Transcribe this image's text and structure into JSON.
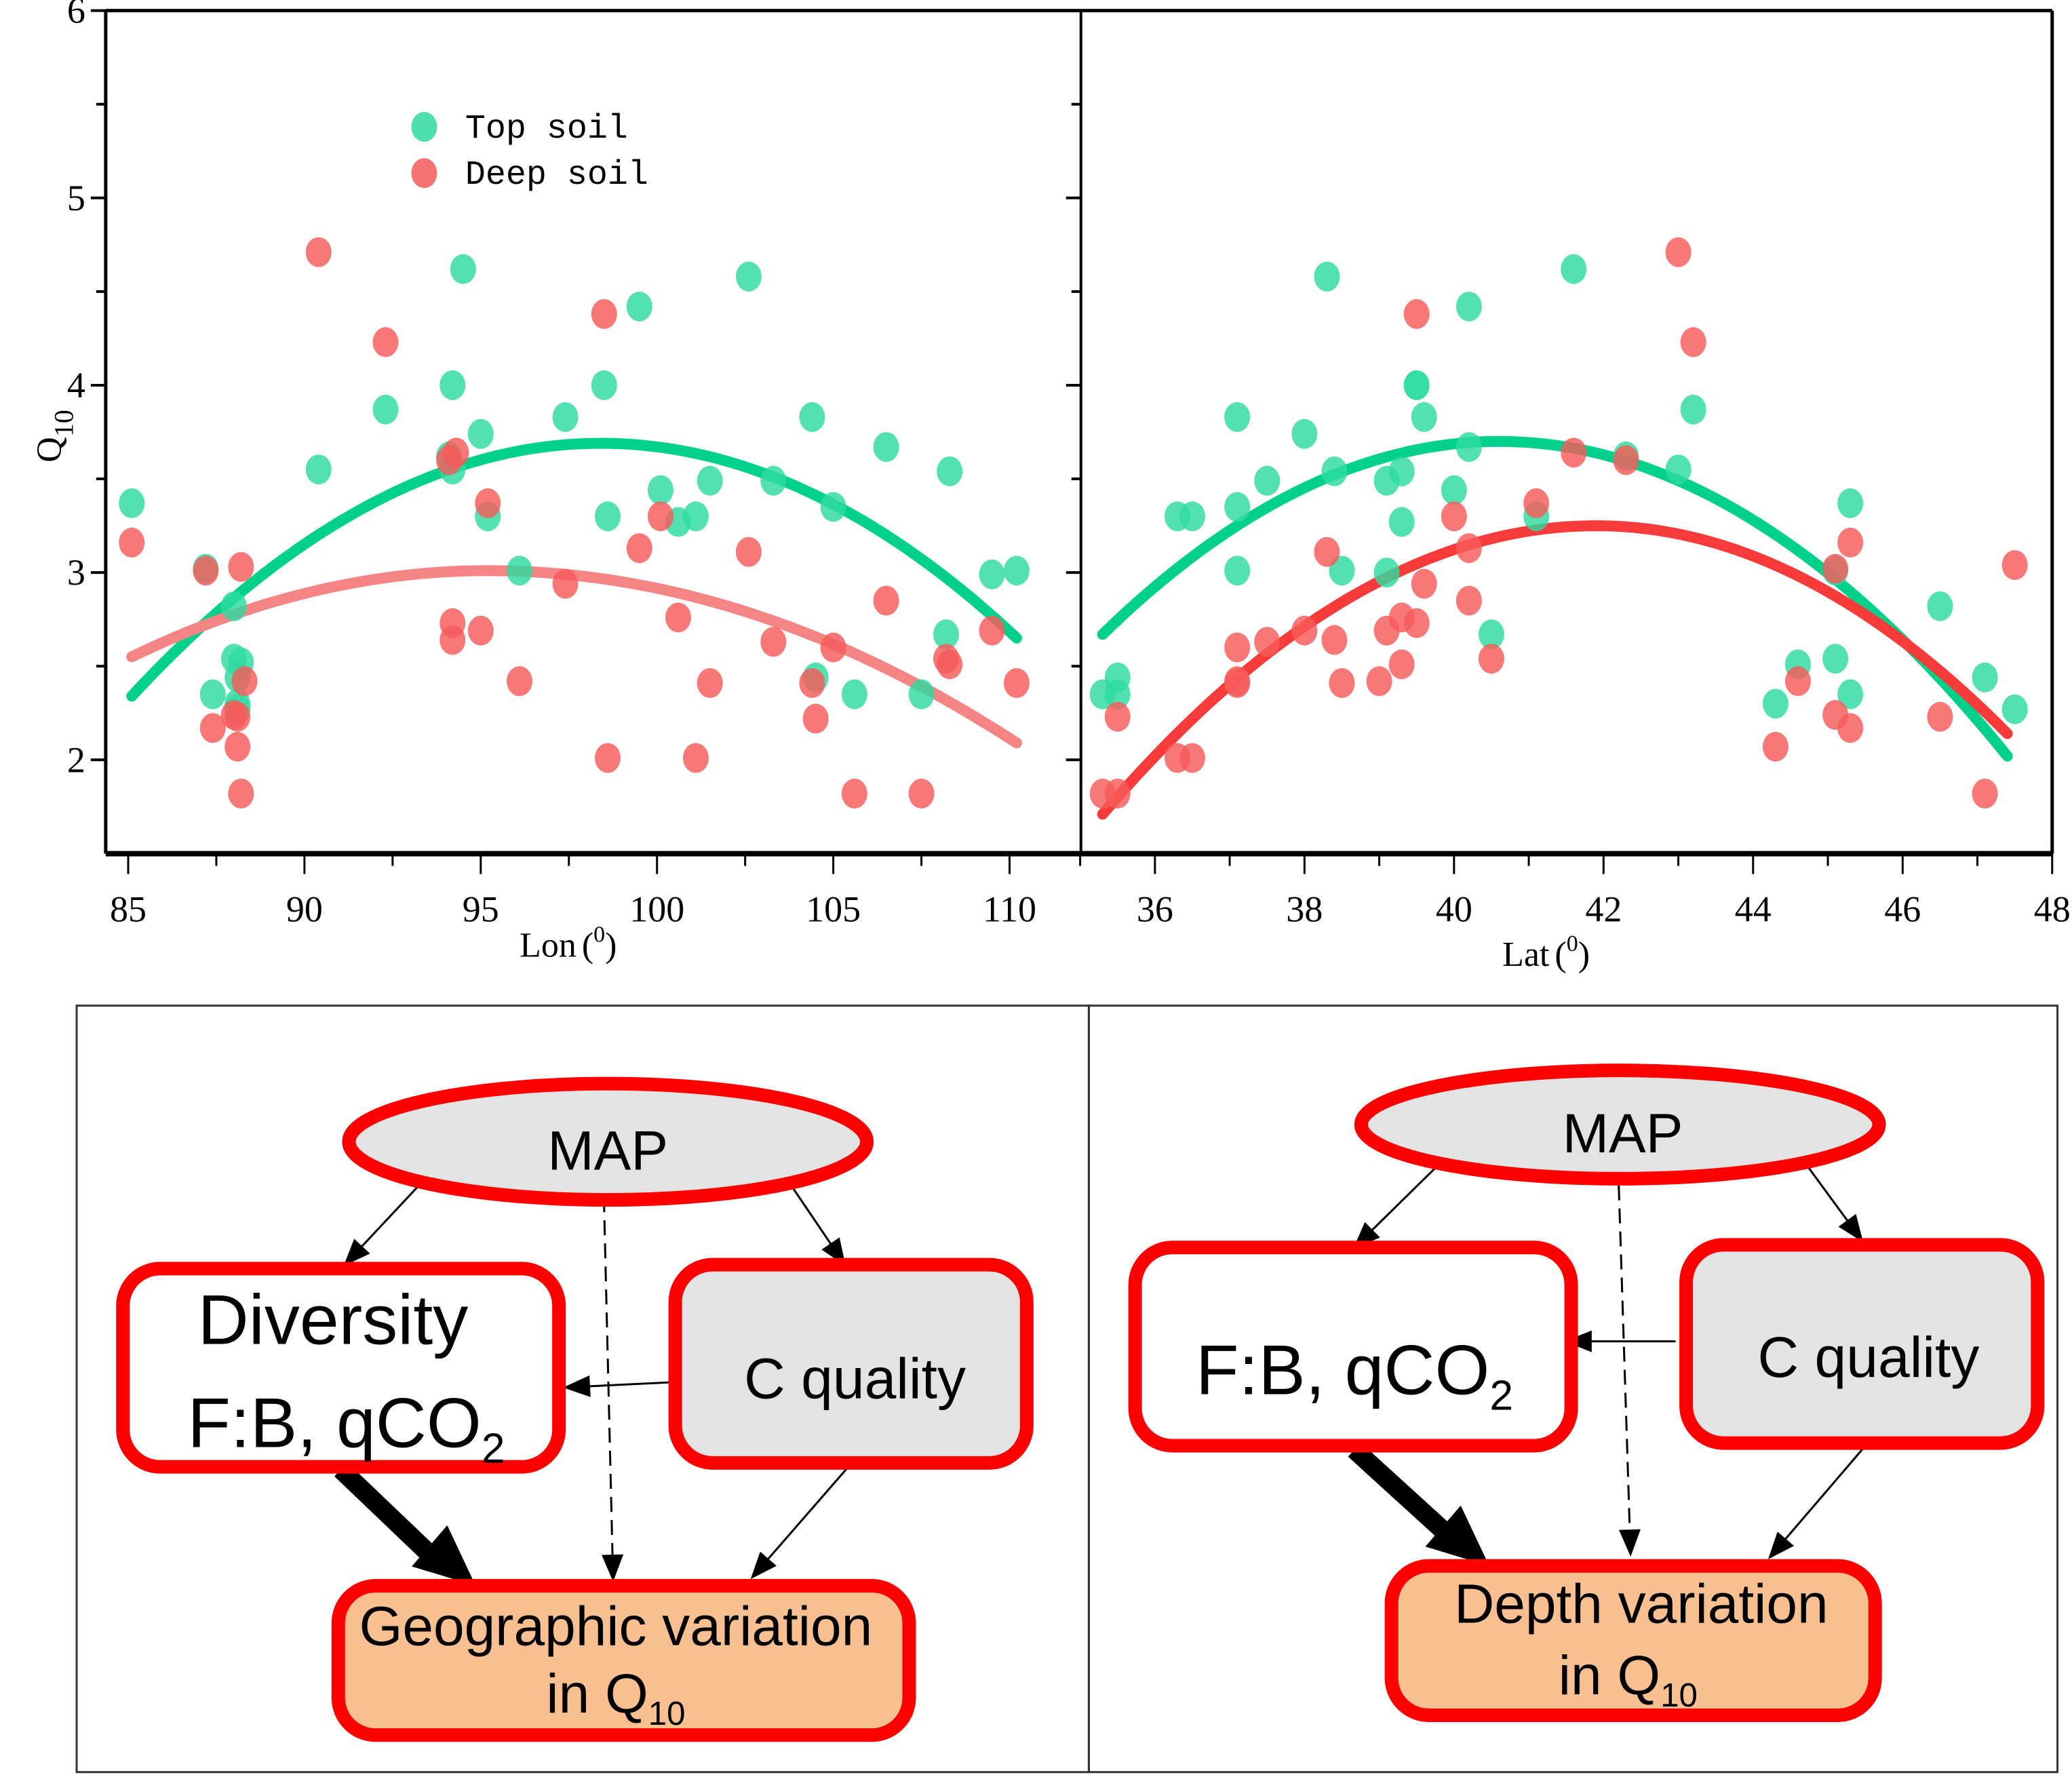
{
  "chart_data": [
    {
      "type": "scatter",
      "panel": "left",
      "xlabel": "Lon",
      "xlabel_unit": "0",
      "ylabel": "Q",
      "ylabel_sub": "10",
      "xlim": [
        84.5,
        112
      ],
      "ylim": [
        1.5,
        6
      ],
      "xticks": [
        85,
        90,
        95,
        100,
        105,
        110
      ],
      "yticks": [
        2,
        3,
        4,
        5,
        6
      ],
      "legend": {
        "placement": "top-left",
        "entries": [
          {
            "label": "Top soil",
            "color": "#2edba0"
          },
          {
            "label": "Deep soil",
            "color": "#f65a5a"
          }
        ]
      },
      "series": [
        {
          "name": "Top soil",
          "color": "#2edba0",
          "points": [
            [
              85.1,
              3.37
            ],
            [
              87.2,
              3.02
            ],
            [
              87.4,
              2.35
            ],
            [
              88.0,
              2.82
            ],
            [
              88.0,
              2.54
            ],
            [
              88.2,
              2.52
            ],
            [
              88.1,
              2.44
            ],
            [
              88.1,
              2.3
            ],
            [
              88.1,
              2.27
            ],
            [
              90.4,
              3.55
            ],
            [
              92.3,
              3.87
            ],
            [
              94.1,
              3.62
            ],
            [
              94.2,
              4.0
            ],
            [
              94.2,
              3.55
            ],
            [
              94.5,
              4.62
            ],
            [
              95.0,
              3.74
            ],
            [
              95.2,
              3.3
            ],
            [
              96.1,
              3.01
            ],
            [
              97.4,
              3.83
            ],
            [
              98.5,
              4.0
            ],
            [
              98.6,
              3.3
            ],
            [
              99.5,
              4.42
            ],
            [
              100.1,
              3.44
            ],
            [
              100.6,
              3.27
            ],
            [
              101.1,
              3.3
            ],
            [
              101.5,
              3.49
            ],
            [
              102.6,
              4.58
            ],
            [
              103.3,
              3.49
            ],
            [
              104.4,
              3.83
            ],
            [
              104.5,
              2.44
            ],
            [
              105.0,
              3.35
            ],
            [
              105.6,
              2.35
            ],
            [
              106.5,
              3.67
            ],
            [
              107.5,
              2.35
            ],
            [
              108.2,
              2.67
            ],
            [
              108.3,
              3.54
            ],
            [
              109.5,
              2.99
            ],
            [
              110.2,
              3.01
            ]
          ],
          "fit": {
            "form": "quadratic",
            "vertex_x": 98.4,
            "vertex_y": 3.69,
            "x_start": 85.1,
            "y_start": 2.34,
            "x_end": 110.2,
            "y_end": 2.65
          }
        },
        {
          "name": "Deep soil",
          "color": "#f65a5a",
          "points": [
            [
              85.1,
              3.16
            ],
            [
              87.2,
              3.01
            ],
            [
              87.4,
              2.17
            ],
            [
              88.0,
              2.24
            ],
            [
              88.1,
              2.07
            ],
            [
              88.2,
              3.03
            ],
            [
              88.3,
              2.42
            ],
            [
              88.2,
              1.82
            ],
            [
              88.1,
              2.23
            ],
            [
              90.4,
              4.71
            ],
            [
              92.3,
              4.23
            ],
            [
              94.1,
              3.6
            ],
            [
              94.3,
              3.64
            ],
            [
              94.2,
              2.73
            ],
            [
              94.2,
              2.64
            ],
            [
              95.0,
              2.69
            ],
            [
              95.2,
              3.37
            ],
            [
              96.1,
              2.42
            ],
            [
              97.4,
              2.94
            ],
            [
              98.5,
              4.38
            ],
            [
              98.6,
              2.01
            ],
            [
              99.5,
              3.13
            ],
            [
              100.1,
              3.3
            ],
            [
              100.6,
              2.76
            ],
            [
              101.1,
              2.01
            ],
            [
              101.5,
              2.41
            ],
            [
              102.6,
              3.11
            ],
            [
              103.3,
              2.63
            ],
            [
              104.4,
              2.41
            ],
            [
              104.5,
              2.22
            ],
            [
              105.0,
              2.6
            ],
            [
              105.6,
              1.82
            ],
            [
              106.5,
              2.85
            ],
            [
              107.5,
              1.82
            ],
            [
              108.2,
              2.54
            ],
            [
              108.3,
              2.51
            ],
            [
              109.5,
              2.69
            ],
            [
              110.2,
              2.41
            ]
          ],
          "fit": {
            "form": "quadratic",
            "vertex_x": 95.2,
            "vertex_y": 3.01,
            "x_start": 85.1,
            "y_start": 2.55,
            "x_end": 110.2,
            "y_end": 2.09
          }
        }
      ]
    },
    {
      "type": "scatter",
      "panel": "right",
      "xlabel": "Lat",
      "xlabel_unit": "0",
      "xlim": [
        35,
        48
      ],
      "ylim": [
        1.5,
        6
      ],
      "xticks": [
        36,
        38,
        40,
        42,
        44,
        46,
        48
      ],
      "series": [
        {
          "name": "Top soil",
          "color": "#2edba0",
          "points": [
            [
              35.3,
              2.35
            ],
            [
              35.5,
              2.44
            ],
            [
              35.5,
              2.35
            ],
            [
              36.3,
              3.3
            ],
            [
              36.5,
              3.3
            ],
            [
              37.1,
              3.83
            ],
            [
              37.1,
              3.35
            ],
            [
              37.1,
              3.01
            ],
            [
              37.5,
              3.49
            ],
            [
              38.0,
              3.74
            ],
            [
              38.3,
              4.58
            ],
            [
              38.4,
              3.54
            ],
            [
              38.5,
              3.01
            ],
            [
              39.1,
              3.49
            ],
            [
              39.1,
              3.0
            ],
            [
              39.3,
              3.27
            ],
            [
              39.3,
              3.54
            ],
            [
              39.5,
              4.0
            ],
            [
              39.5,
              4.0
            ],
            [
              39.6,
              3.83
            ],
            [
              40.0,
              3.44
            ],
            [
              40.2,
              4.42
            ],
            [
              40.2,
              3.67
            ],
            [
              40.5,
              2.67
            ],
            [
              41.1,
              3.3
            ],
            [
              41.6,
              4.62
            ],
            [
              42.3,
              3.62
            ],
            [
              43.0,
              3.55
            ],
            [
              43.2,
              3.87
            ],
            [
              44.3,
              2.3
            ],
            [
              44.6,
              2.51
            ],
            [
              45.1,
              3.01
            ],
            [
              45.1,
              2.54
            ],
            [
              45.3,
              3.37
            ],
            [
              45.3,
              2.35
            ],
            [
              46.5,
              2.82
            ],
            [
              47.1,
              2.44
            ],
            [
              47.5,
              2.27
            ]
          ],
          "fit": {
            "form": "quadratic",
            "vertex_x": 40.6,
            "vertex_y": 3.7,
            "x_start": 35.3,
            "y_start": 2.67,
            "x_end": 47.4,
            "y_end": 2.02
          }
        },
        {
          "name": "Deep soil",
          "color": "#f65a5a",
          "points": [
            [
              35.3,
              1.82
            ],
            [
              35.5,
              1.82
            ],
            [
              35.5,
              2.23
            ],
            [
              36.3,
              2.01
            ],
            [
              36.5,
              2.01
            ],
            [
              37.1,
              2.6
            ],
            [
              37.1,
              2.42
            ],
            [
              37.1,
              2.41
            ],
            [
              37.5,
              2.63
            ],
            [
              38.0,
              2.69
            ],
            [
              38.3,
              3.11
            ],
            [
              38.4,
              2.64
            ],
            [
              38.5,
              2.41
            ],
            [
              39.0,
              2.42
            ],
            [
              39.1,
              2.69
            ],
            [
              39.3,
              2.51
            ],
            [
              39.3,
              2.76
            ],
            [
              39.5,
              2.73
            ],
            [
              39.5,
              4.38
            ],
            [
              39.6,
              2.94
            ],
            [
              40.0,
              3.3
            ],
            [
              40.2,
              3.13
            ],
            [
              40.2,
              2.85
            ],
            [
              40.5,
              2.54
            ],
            [
              41.1,
              3.37
            ],
            [
              41.6,
              3.64
            ],
            [
              42.3,
              3.6
            ],
            [
              43.0,
              4.71
            ],
            [
              43.2,
              4.23
            ],
            [
              44.3,
              2.07
            ],
            [
              44.6,
              2.42
            ],
            [
              45.1,
              3.02
            ],
            [
              45.1,
              2.24
            ],
            [
              45.3,
              3.16
            ],
            [
              45.3,
              2.17
            ],
            [
              46.5,
              2.23
            ],
            [
              47.1,
              1.82
            ],
            [
              47.5,
              3.04
            ]
          ],
          "fit": {
            "form": "quadratic",
            "vertex_x": 41.9,
            "vertex_y": 3.25,
            "x_start": 35.3,
            "y_start": 1.71,
            "x_end": 47.4,
            "y_end": 2.14
          }
        }
      ]
    }
  ],
  "diagrams": [
    {
      "panel": "left",
      "nodes": {
        "map": "MAP",
        "micro_line1": "Diversity",
        "micro_line2_main": "F:B, qCO",
        "micro_line2_sub": "2",
        "cquality": "C quality",
        "outcome_line1": "Geographic variation",
        "outcome_line2_main": "in Q",
        "outcome_line2_sub": "10"
      }
    },
    {
      "panel": "right",
      "nodes": {
        "map": "MAP",
        "micro_line1": "",
        "micro_line2_main": "F:B, qCO",
        "micro_line2_sub": "2",
        "cquality": "C quality",
        "outcome_line1": "Depth variation",
        "outcome_line2_main": "in Q",
        "outcome_line2_sub": "10"
      }
    }
  ],
  "colors": {
    "top_soil": "#2edba0",
    "top_soil_fit": "#00d18a",
    "deep_soil": "#f65a5a",
    "deep_soil_fit_left": "#f58585",
    "deep_soil_fit_right": "#f73b3b",
    "node_border": "#ff0000",
    "node_gray": "#e3e3e3",
    "node_orange": "#f8c090"
  }
}
